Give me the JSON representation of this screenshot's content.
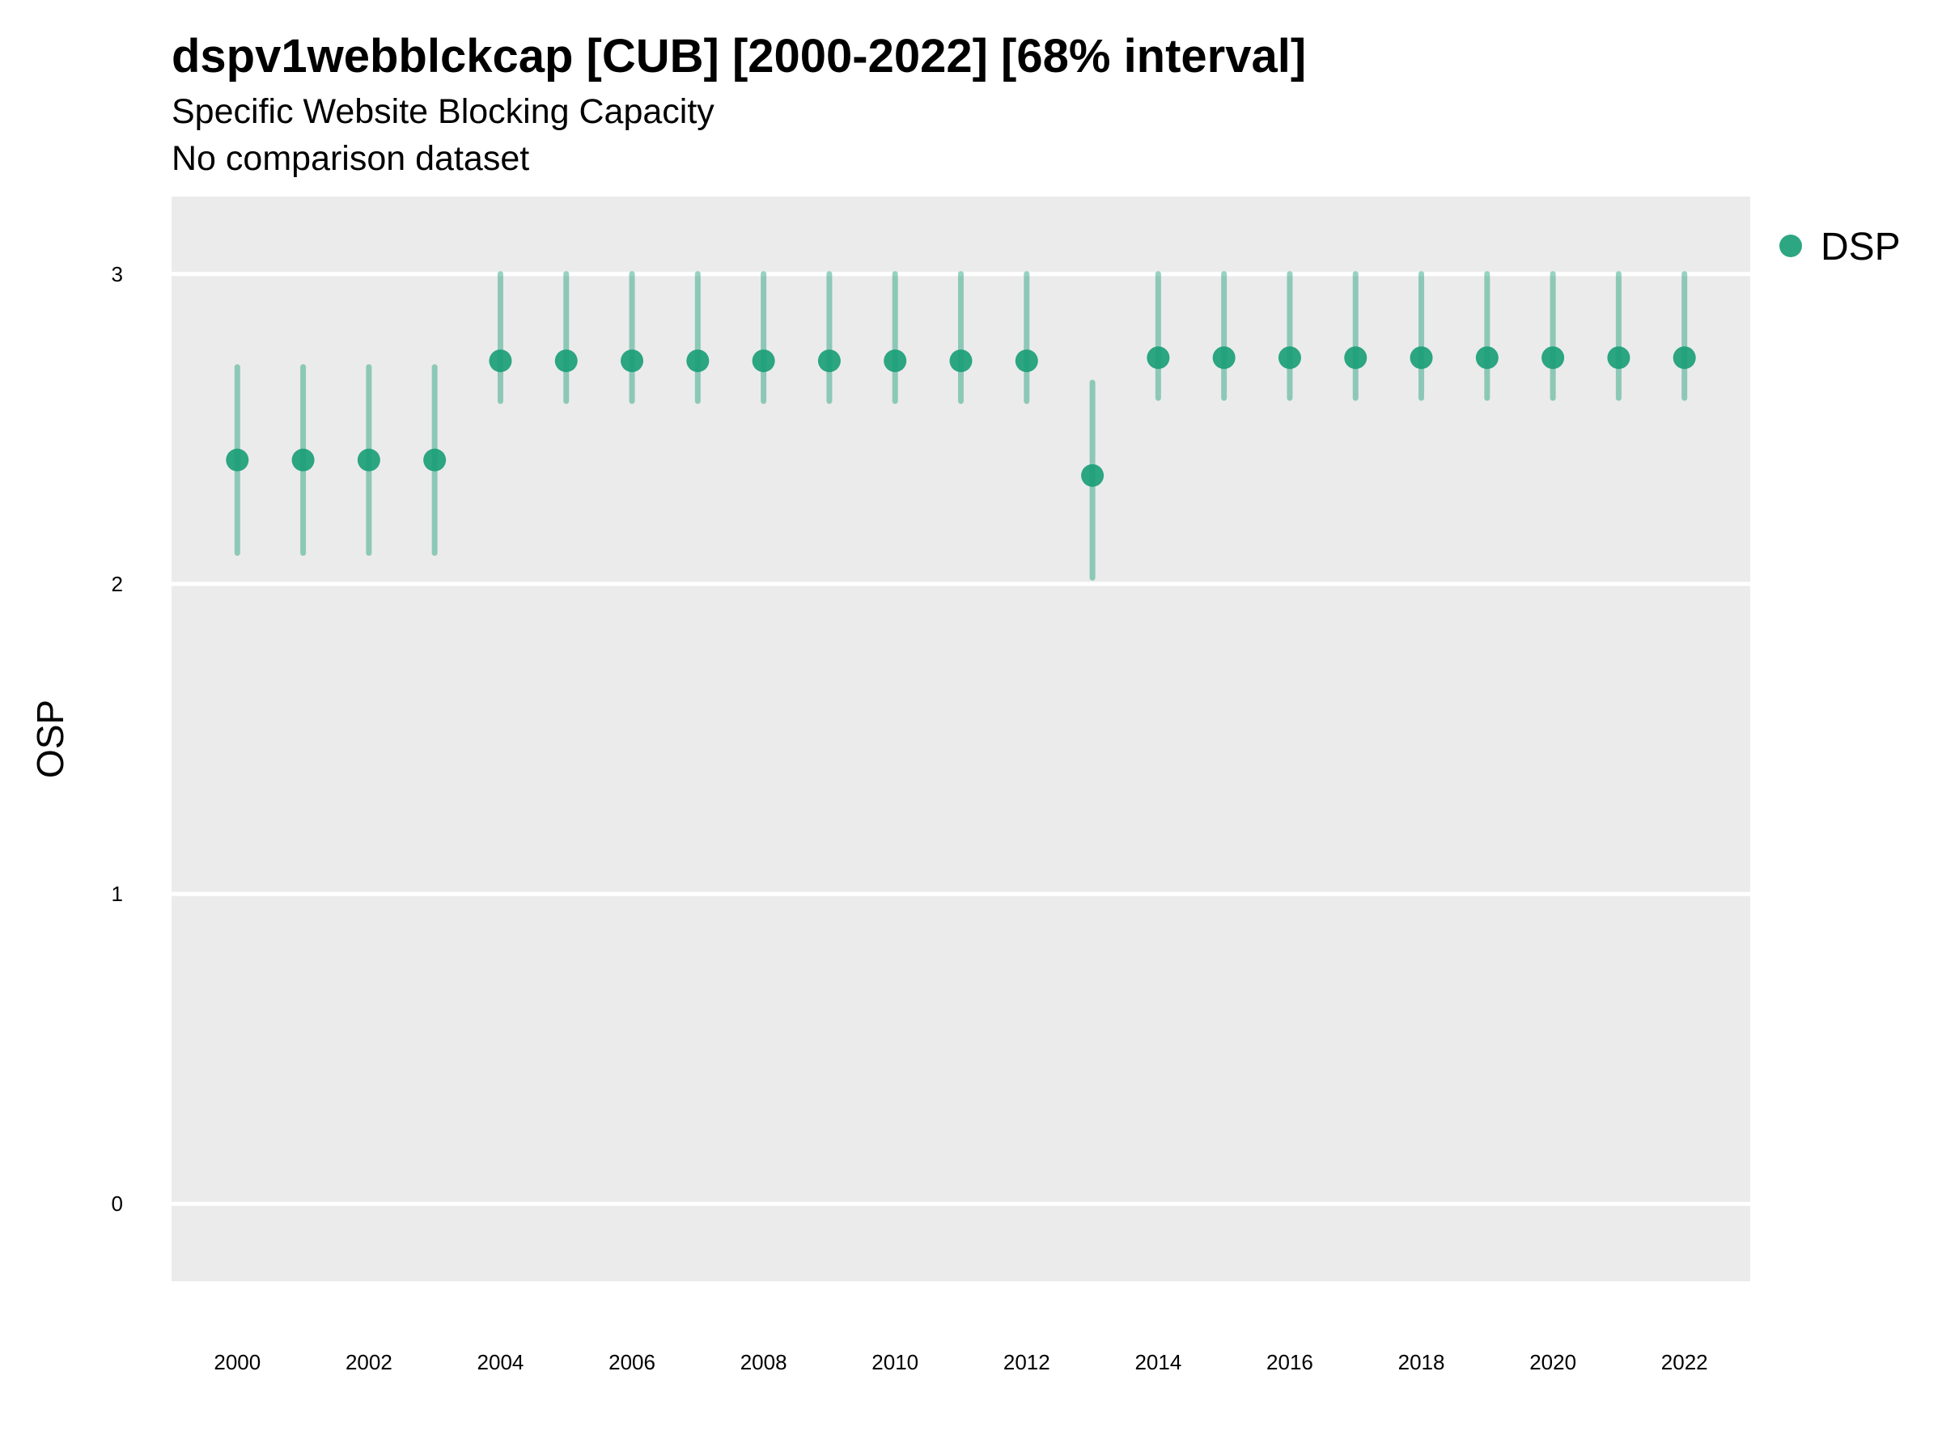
{
  "title": "dspv1webblckcap [CUB] [2000-2022] [68% interval]",
  "subtitle": "Specific Website Blocking Capacity",
  "caption": "No comparison dataset",
  "colors": {
    "panel_background": "#EBEBEB",
    "gridline": "#FFFFFF",
    "series_color": "#1B9E77"
  },
  "chart_data": {
    "type": "scatter",
    "ylabel": "OSP",
    "xlabel": "",
    "ylim": [
      -0.25,
      3.25
    ],
    "xlim": [
      1999,
      2023
    ],
    "grid": "horizontal",
    "legend_position": "right",
    "x_ticks": [
      2000,
      2002,
      2004,
      2006,
      2008,
      2010,
      2012,
      2014,
      2016,
      2018,
      2020,
      2022
    ],
    "y_ticks": [
      0,
      1,
      2,
      3
    ],
    "series": [
      {
        "name": "DSP",
        "x": [
          2000,
          2001,
          2002,
          2003,
          2004,
          2005,
          2006,
          2007,
          2008,
          2009,
          2010,
          2011,
          2012,
          2013,
          2014,
          2015,
          2016,
          2017,
          2018,
          2019,
          2020,
          2021,
          2022
        ],
        "y": [
          2.4,
          2.4,
          2.4,
          2.4,
          2.72,
          2.72,
          2.72,
          2.72,
          2.72,
          2.72,
          2.72,
          2.72,
          2.72,
          2.35,
          2.73,
          2.73,
          2.73,
          2.73,
          2.73,
          2.73,
          2.73,
          2.73,
          2.73
        ],
        "lower": [
          2.1,
          2.1,
          2.1,
          2.1,
          2.59,
          2.59,
          2.59,
          2.59,
          2.59,
          2.59,
          2.59,
          2.59,
          2.59,
          2.02,
          2.6,
          2.6,
          2.6,
          2.6,
          2.6,
          2.6,
          2.6,
          2.6,
          2.6
        ],
        "upper": [
          2.7,
          2.7,
          2.7,
          2.7,
          3.0,
          3.0,
          3.0,
          3.0,
          3.0,
          3.0,
          3.0,
          3.0,
          3.0,
          2.65,
          3.0,
          3.0,
          3.0,
          3.0,
          3.0,
          3.0,
          3.0,
          3.0,
          3.0
        ]
      }
    ]
  }
}
